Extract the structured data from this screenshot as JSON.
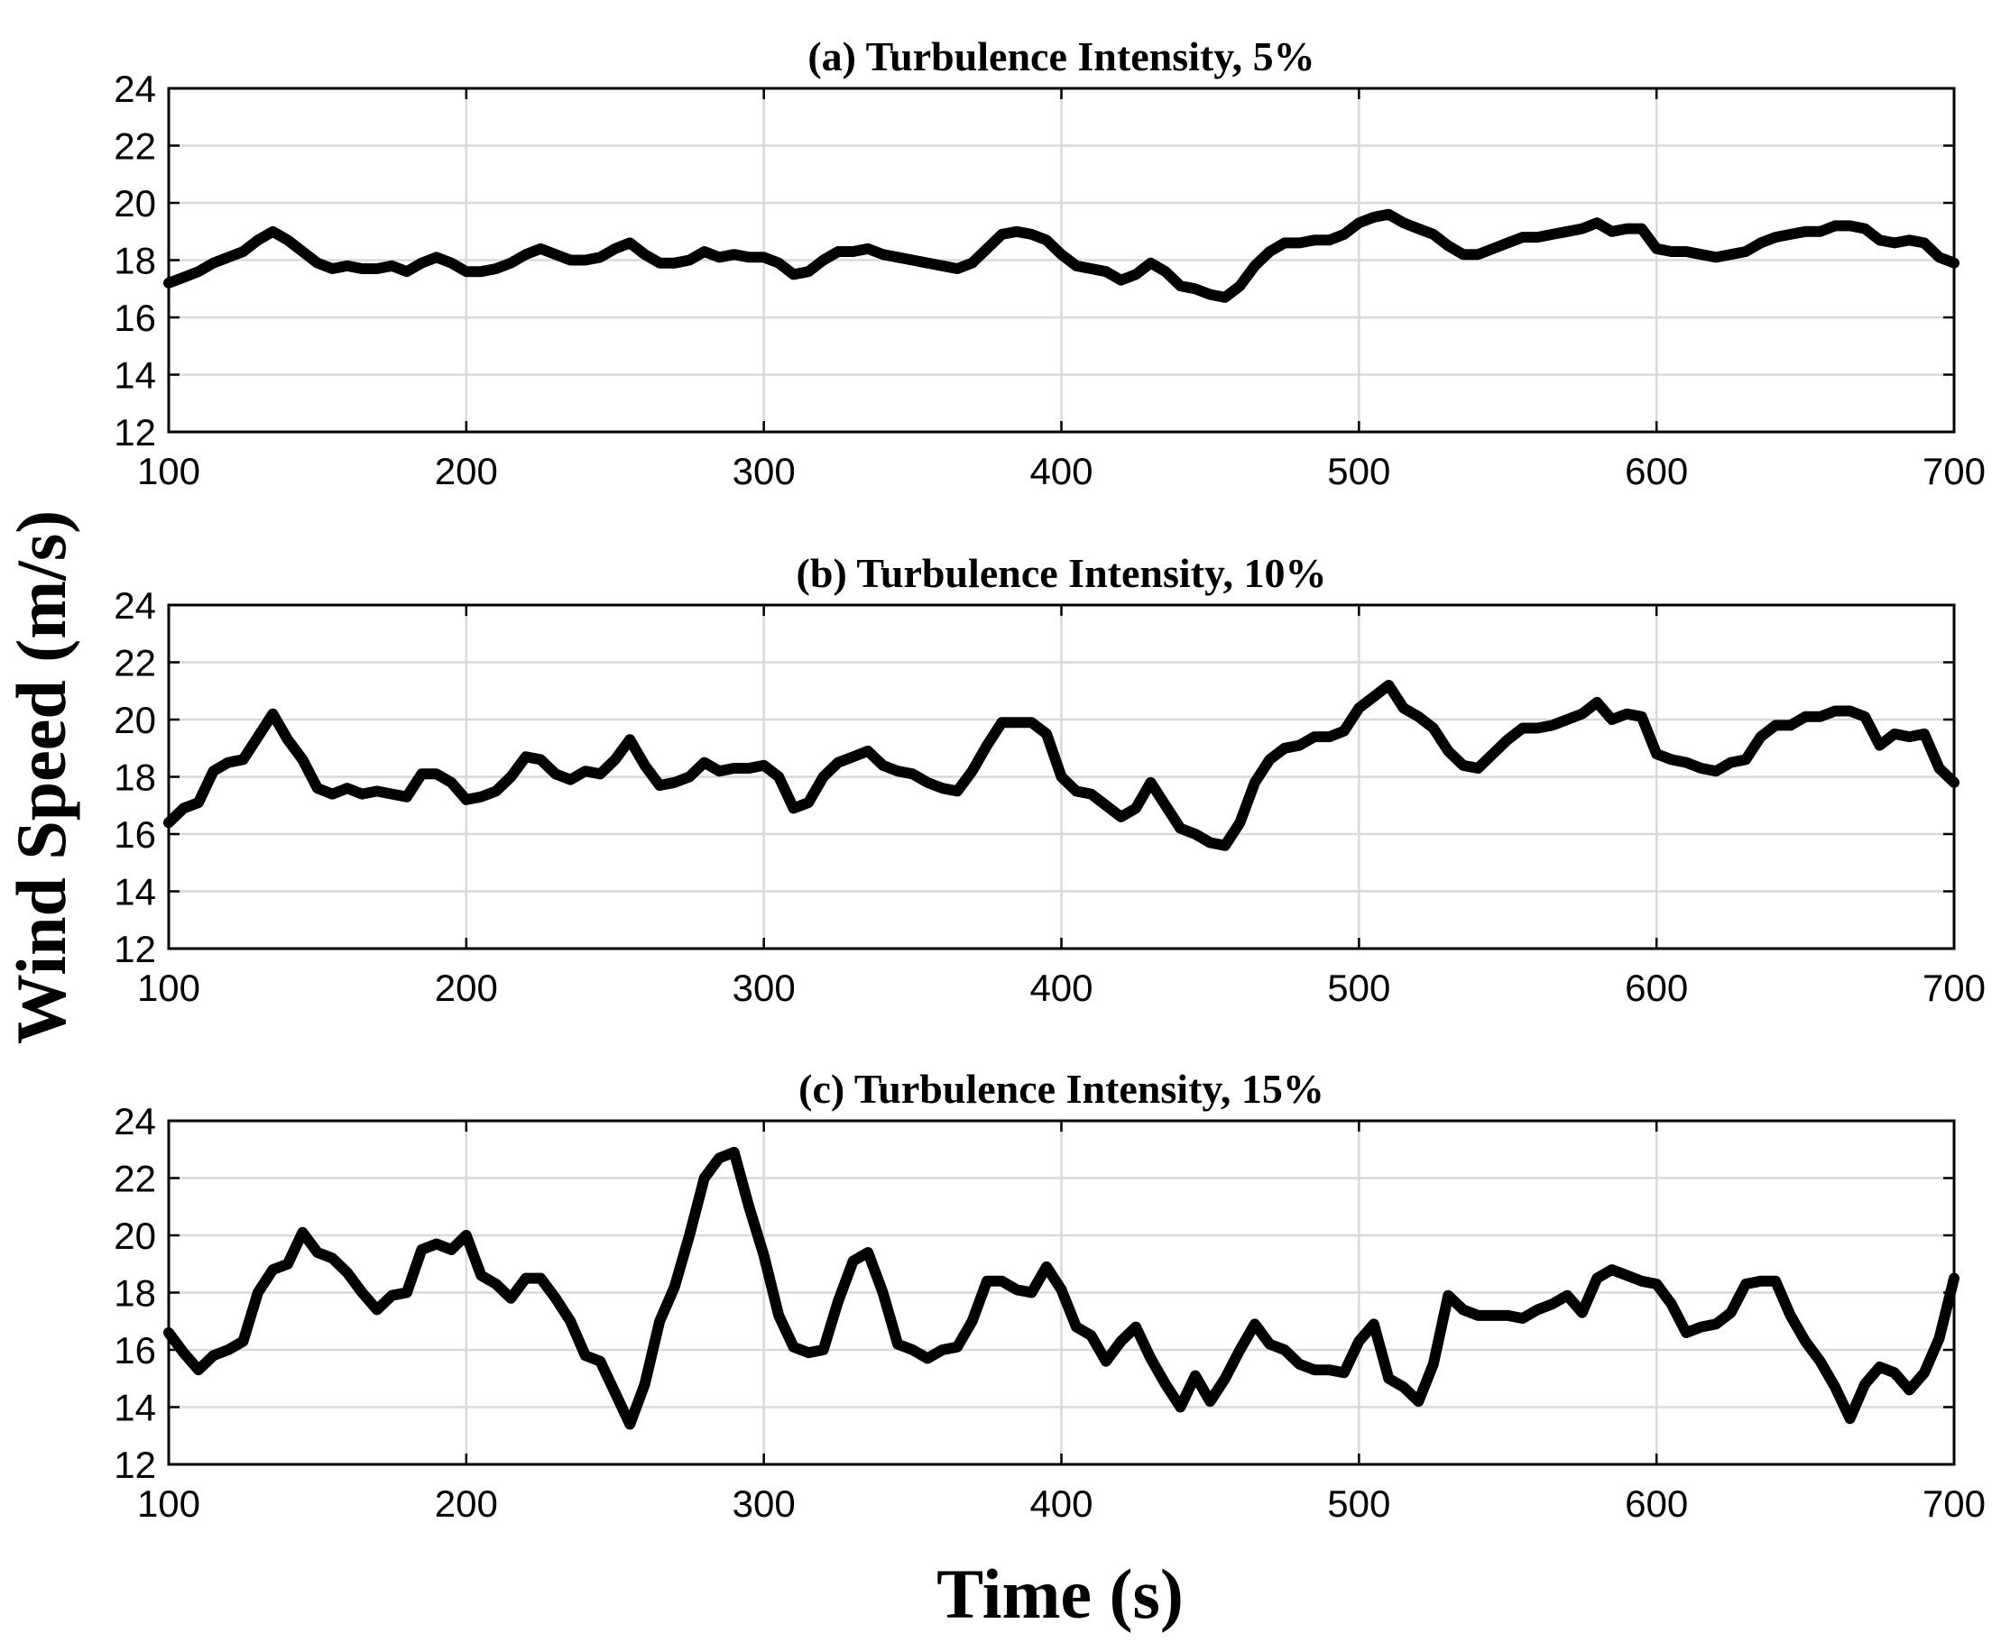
{
  "figure": {
    "xlabel": "Time (s)",
    "ylabel": "Wind Speed (m/s)"
  },
  "chart_data": [
    {
      "type": "line",
      "title": "(a) Turbulence Intensity, 5%",
      "xlabel": "Time (s)",
      "ylabel": "Wind Speed (m/s)",
      "xlim": [
        100,
        700
      ],
      "ylim": [
        12,
        24
      ],
      "xticks": [
        100,
        200,
        300,
        400,
        500,
        600,
        700
      ],
      "yticks": [
        12,
        14,
        16,
        18,
        20,
        22,
        24
      ],
      "grid": true,
      "series": [
        {
          "name": "Wind speed",
          "x": [
            100,
            105,
            110,
            115,
            120,
            125,
            130,
            135,
            140,
            145,
            150,
            155,
            160,
            165,
            170,
            175,
            180,
            185,
            190,
            195,
            200,
            205,
            210,
            215,
            220,
            225,
            230,
            235,
            240,
            245,
            250,
            255,
            260,
            265,
            270,
            275,
            280,
            285,
            290,
            295,
            300,
            305,
            310,
            315,
            320,
            325,
            330,
            335,
            340,
            345,
            350,
            355,
            360,
            365,
            370,
            375,
            380,
            385,
            390,
            395,
            400,
            405,
            410,
            415,
            420,
            425,
            430,
            435,
            440,
            445,
            450,
            455,
            460,
            465,
            470,
            475,
            480,
            485,
            490,
            495,
            500,
            505,
            510,
            515,
            520,
            525,
            530,
            535,
            540,
            545,
            550,
            555,
            560,
            565,
            570,
            575,
            580,
            585,
            590,
            595,
            600,
            605,
            610,
            615,
            620,
            625,
            630,
            635,
            640,
            645,
            650,
            655,
            660,
            665,
            670,
            675,
            680,
            685,
            690,
            695,
            700
          ],
          "y": [
            17.2,
            17.4,
            17.6,
            17.9,
            18.1,
            18.3,
            18.7,
            19.0,
            18.7,
            18.3,
            17.9,
            17.7,
            17.8,
            17.7,
            17.7,
            17.8,
            17.6,
            17.9,
            18.1,
            17.9,
            17.6,
            17.6,
            17.7,
            17.9,
            18.2,
            18.4,
            18.2,
            18.0,
            18.0,
            18.1,
            18.4,
            18.6,
            18.2,
            17.9,
            17.9,
            18.0,
            18.3,
            18.1,
            18.2,
            18.1,
            18.1,
            17.9,
            17.5,
            17.6,
            18.0,
            18.3,
            18.3,
            18.4,
            18.2,
            18.1,
            18.0,
            17.9,
            17.8,
            17.7,
            17.9,
            18.4,
            18.9,
            19.0,
            18.9,
            18.7,
            18.2,
            17.8,
            17.7,
            17.6,
            17.3,
            17.5,
            17.9,
            17.6,
            17.1,
            17.0,
            16.8,
            16.7,
            17.1,
            17.8,
            18.3,
            18.6,
            18.6,
            18.7,
            18.7,
            18.9,
            19.3,
            19.5,
            19.6,
            19.3,
            19.1,
            18.9,
            18.5,
            18.2,
            18.2,
            18.4,
            18.6,
            18.8,
            18.8,
            18.9,
            19.0,
            19.1,
            19.3,
            19.0,
            19.1,
            19.1,
            18.4,
            18.3,
            18.3,
            18.2,
            18.1,
            18.2,
            18.3,
            18.6,
            18.8,
            18.9,
            19.0,
            19.0,
            19.2,
            19.2,
            19.1,
            18.7,
            18.6,
            18.7,
            18.6,
            18.1,
            17.9
          ]
        }
      ]
    },
    {
      "type": "line",
      "title": "(b) Turbulence Intensity, 10%",
      "xlabel": "Time (s)",
      "ylabel": "Wind Speed (m/s)",
      "xlim": [
        100,
        700
      ],
      "ylim": [
        12,
        24
      ],
      "xticks": [
        100,
        200,
        300,
        400,
        500,
        600,
        700
      ],
      "yticks": [
        12,
        14,
        16,
        18,
        20,
        22,
        24
      ],
      "grid": true,
      "series": [
        {
          "name": "Wind speed",
          "x": [
            100,
            105,
            110,
            115,
            120,
            125,
            130,
            135,
            140,
            145,
            150,
            155,
            160,
            165,
            170,
            175,
            180,
            185,
            190,
            195,
            200,
            205,
            210,
            215,
            220,
            225,
            230,
            235,
            240,
            245,
            250,
            255,
            260,
            265,
            270,
            275,
            280,
            285,
            290,
            295,
            300,
            305,
            310,
            315,
            320,
            325,
            330,
            335,
            340,
            345,
            350,
            355,
            360,
            365,
            370,
            375,
            380,
            385,
            390,
            395,
            400,
            405,
            410,
            415,
            420,
            425,
            430,
            435,
            440,
            445,
            450,
            455,
            460,
            465,
            470,
            475,
            480,
            485,
            490,
            495,
            500,
            505,
            510,
            515,
            520,
            525,
            530,
            535,
            540,
            545,
            550,
            555,
            560,
            565,
            570,
            575,
            580,
            585,
            590,
            595,
            600,
            605,
            610,
            615,
            620,
            625,
            630,
            635,
            640,
            645,
            650,
            655,
            660,
            665,
            670,
            675,
            680,
            685,
            690,
            695,
            700
          ],
          "y": [
            16.4,
            16.9,
            17.1,
            18.2,
            18.5,
            18.6,
            19.4,
            20.2,
            19.3,
            18.6,
            17.6,
            17.4,
            17.6,
            17.4,
            17.5,
            17.4,
            17.3,
            18.1,
            18.1,
            17.8,
            17.2,
            17.3,
            17.5,
            18.0,
            18.7,
            18.6,
            18.1,
            17.9,
            18.2,
            18.1,
            18.6,
            19.3,
            18.4,
            17.7,
            17.8,
            18.0,
            18.5,
            18.2,
            18.3,
            18.3,
            18.4,
            18.0,
            16.9,
            17.1,
            18.0,
            18.5,
            18.7,
            18.9,
            18.4,
            18.2,
            18.1,
            17.8,
            17.6,
            17.5,
            18.2,
            19.1,
            19.9,
            19.9,
            19.9,
            19.5,
            18.0,
            17.5,
            17.4,
            17.0,
            16.6,
            16.9,
            17.8,
            17.0,
            16.2,
            16.0,
            15.7,
            15.6,
            16.4,
            17.8,
            18.6,
            19.0,
            19.1,
            19.4,
            19.4,
            19.6,
            20.4,
            20.8,
            21.2,
            20.4,
            20.1,
            19.7,
            18.9,
            18.4,
            18.3,
            18.8,
            19.3,
            19.7,
            19.7,
            19.8,
            20.0,
            20.2,
            20.6,
            20.0,
            20.2,
            20.1,
            18.8,
            18.6,
            18.5,
            18.3,
            18.2,
            18.5,
            18.6,
            19.4,
            19.8,
            19.8,
            20.1,
            20.1,
            20.3,
            20.3,
            20.1,
            19.1,
            19.5,
            19.4,
            19.5,
            18.3,
            17.8
          ]
        }
      ]
    },
    {
      "type": "line",
      "title": "(c) Turbulence Intensity, 15%",
      "xlabel": "Time (s)",
      "ylabel": "Wind Speed (m/s)",
      "xlim": [
        100,
        700
      ],
      "ylim": [
        12,
        24
      ],
      "xticks": [
        100,
        200,
        300,
        400,
        500,
        600,
        700
      ],
      "yticks": [
        12,
        14,
        16,
        18,
        20,
        22,
        24
      ],
      "grid": true,
      "series": [
        {
          "name": "Wind speed",
          "x": [
            100,
            105,
            110,
            115,
            120,
            125,
            130,
            135,
            140,
            145,
            150,
            155,
            160,
            165,
            170,
            175,
            180,
            185,
            190,
            195,
            200,
            205,
            210,
            215,
            220,
            225,
            230,
            235,
            240,
            245,
            250,
            255,
            260,
            265,
            270,
            275,
            280,
            285,
            290,
            295,
            300,
            305,
            310,
            315,
            320,
            325,
            330,
            335,
            340,
            345,
            350,
            355,
            360,
            365,
            370,
            375,
            380,
            385,
            390,
            395,
            400,
            405,
            410,
            415,
            420,
            425,
            430,
            435,
            440,
            445,
            450,
            455,
            460,
            465,
            470,
            475,
            480,
            485,
            490,
            495,
            500,
            505,
            510,
            515,
            520,
            525,
            530,
            535,
            540,
            545,
            550,
            555,
            560,
            565,
            570,
            575,
            580,
            585,
            590,
            595,
            600,
            605,
            610,
            615,
            620,
            625,
            630,
            635,
            640,
            645,
            650,
            655,
            660,
            665,
            670,
            675,
            680,
            685,
            690,
            695,
            700
          ],
          "y": [
            16.6,
            15.9,
            15.3,
            15.8,
            16.0,
            16.3,
            18.0,
            18.8,
            19.0,
            20.1,
            19.4,
            19.2,
            18.7,
            18.0,
            17.4,
            17.9,
            18.0,
            19.5,
            19.7,
            19.5,
            20.0,
            18.6,
            18.3,
            17.8,
            18.5,
            18.5,
            17.8,
            17.0,
            15.8,
            15.6,
            14.5,
            13.4,
            14.8,
            17.0,
            18.2,
            20.0,
            22.0,
            22.7,
            22.9,
            21.0,
            19.3,
            17.2,
            16.1,
            15.9,
            16.0,
            17.7,
            19.1,
            19.4,
            18.0,
            16.2,
            16.0,
            15.7,
            16.0,
            16.1,
            17.0,
            18.4,
            18.4,
            18.1,
            18.0,
            18.9,
            18.1,
            16.8,
            16.5,
            15.6,
            16.3,
            16.8,
            15.7,
            14.8,
            14.0,
            15.1,
            14.2,
            15.0,
            16.0,
            16.9,
            16.2,
            16.0,
            15.5,
            15.3,
            15.3,
            15.2,
            16.3,
            16.9,
            15.0,
            14.7,
            14.2,
            15.5,
            17.9,
            17.4,
            17.2,
            17.2,
            17.2,
            17.1,
            17.4,
            17.6,
            17.9,
            17.3,
            18.5,
            18.8,
            18.6,
            18.4,
            18.3,
            17.6,
            16.6,
            16.8,
            16.9,
            17.3,
            18.3,
            18.4,
            18.4,
            17.2,
            16.3,
            15.6,
            14.7,
            13.6,
            14.8,
            15.4,
            15.2,
            14.6,
            15.2,
            16.4,
            18.5
          ]
        }
      ]
    }
  ]
}
